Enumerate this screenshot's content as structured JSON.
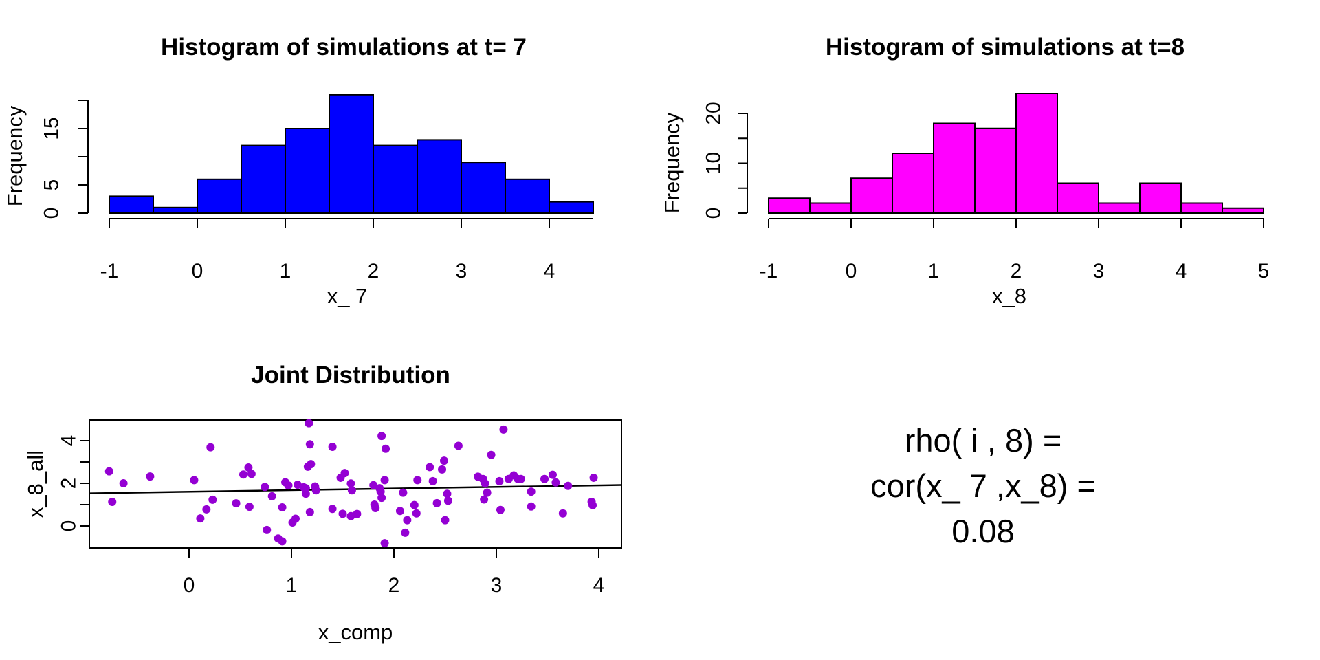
{
  "chart_data": [
    {
      "type": "histogram",
      "panel": "top-left",
      "title": "Histogram of simulations at t= 7",
      "xlabel": "x_ 7",
      "ylabel": "Frequency",
      "bar_color": "#0000FF",
      "bin_start": -1,
      "bin_width": 0.5,
      "counts": [
        3,
        1,
        6,
        12,
        15,
        21,
        12,
        13,
        9,
        6,
        2
      ],
      "x_tick_values": [
        -1,
        0,
        1,
        2,
        3,
        4
      ],
      "x_tick_labels": [
        "-1",
        "0",
        "1",
        "2",
        "3",
        "4"
      ],
      "y_tick_values": [
        0,
        5,
        10,
        15,
        20
      ],
      "y_tick_labels": [
        "0",
        "5",
        "",
        "15",
        ""
      ],
      "xlim": [
        -1,
        4.5
      ],
      "ylim": [
        0,
        21
      ],
      "grid": false
    },
    {
      "type": "histogram",
      "panel": "top-right",
      "title": "Histogram of simulations at t=8",
      "xlabel": "x_8",
      "ylabel": "Frequency",
      "bar_color": "#FF00FF",
      "bin_start": -1,
      "bin_width": 0.5,
      "counts": [
        3,
        2,
        7,
        12,
        18,
        17,
        24,
        6,
        2,
        6,
        2,
        1
      ],
      "x_tick_values": [
        -1,
        0,
        1,
        2,
        3,
        4,
        5
      ],
      "x_tick_labels": [
        "-1",
        "0",
        "1",
        "2",
        "3",
        "4",
        "5"
      ],
      "y_tick_values": [
        0,
        5,
        10,
        15,
        20
      ],
      "y_tick_labels": [
        "0",
        "",
        "10",
        "",
        "20"
      ],
      "xlim": [
        -1,
        5
      ],
      "ylim": [
        0,
        24
      ],
      "grid": false
    },
    {
      "type": "scatter",
      "panel": "bottom-left",
      "title": "Joint Distribution",
      "xlabel": "x_comp",
      "ylabel": "x_8_all",
      "point_color": "#9400D3",
      "line_color": "#000000",
      "x_tick_values": [
        0,
        1,
        2,
        3,
        4
      ],
      "x_tick_labels": [
        "0",
        "1",
        "2",
        "3",
        "4"
      ],
      "y_tick_values": [
        0,
        1,
        2,
        3,
        4
      ],
      "y_tick_labels": [
        "0",
        "",
        "2",
        "",
        "4"
      ],
      "xlim": [
        -0.97,
        4.22
      ],
      "ylim": [
        -1.03,
        4.97
      ],
      "fit_line": {
        "x1": -0.97,
        "y1": 1.53,
        "x2": 4.22,
        "y2": 1.92
      },
      "points": [
        [
          -0.78,
          2.56
        ],
        [
          -0.64,
          2.0
        ],
        [
          -0.75,
          1.13
        ],
        [
          -0.38,
          2.32
        ],
        [
          0.05,
          2.15
        ],
        [
          0.21,
          3.69
        ],
        [
          0.11,
          0.35
        ],
        [
          0.17,
          0.78
        ],
        [
          0.23,
          1.23
        ],
        [
          0.46,
          1.06
        ],
        [
          0.53,
          2.41
        ],
        [
          0.58,
          2.74
        ],
        [
          0.61,
          2.44
        ],
        [
          0.59,
          0.9
        ],
        [
          0.74,
          1.83
        ],
        [
          0.81,
          1.39
        ],
        [
          0.76,
          -0.19
        ],
        [
          0.87,
          -0.59
        ],
        [
          0.91,
          -0.72
        ],
        [
          0.91,
          0.87
        ],
        [
          0.94,
          2.05
        ],
        [
          0.97,
          1.9
        ],
        [
          1.01,
          0.16
        ],
        [
          1.04,
          0.34
        ],
        [
          1.06,
          1.93
        ],
        [
          1.12,
          1.81
        ],
        [
          1.14,
          1.77
        ],
        [
          1.17,
          4.82
        ],
        [
          1.18,
          3.83
        ],
        [
          1.16,
          2.78
        ],
        [
          1.19,
          2.9
        ],
        [
          1.14,
          1.51
        ],
        [
          1.18,
          0.65
        ],
        [
          1.23,
          1.85
        ],
        [
          1.24,
          1.67
        ],
        [
          1.4,
          3.71
        ],
        [
          1.4,
          0.8
        ],
        [
          1.48,
          2.26
        ],
        [
          1.52,
          2.48
        ],
        [
          1.58,
          1.99
        ],
        [
          1.59,
          1.67
        ],
        [
          1.58,
          0.46
        ],
        [
          1.5,
          0.57
        ],
        [
          1.88,
          4.22
        ],
        [
          1.92,
          3.62
        ],
        [
          1.8,
          1.91
        ],
        [
          1.86,
          1.77
        ],
        [
          1.87,
          1.61
        ],
        [
          1.88,
          1.32
        ],
        [
          1.81,
          1.0
        ],
        [
          1.82,
          0.84
        ],
        [
          1.64,
          0.56
        ],
        [
          1.91,
          2.15
        ],
        [
          2.06,
          0.7
        ],
        [
          2.09,
          1.56
        ],
        [
          2.13,
          0.27
        ],
        [
          2.11,
          -0.32
        ],
        [
          1.91,
          -0.81
        ],
        [
          2.2,
          0.98
        ],
        [
          2.22,
          0.59
        ],
        [
          2.23,
          2.15
        ],
        [
          2.35,
          2.76
        ],
        [
          2.38,
          2.1
        ],
        [
          2.42,
          1.07
        ],
        [
          2.47,
          2.65
        ],
        [
          2.49,
          3.06
        ],
        [
          2.52,
          1.51
        ],
        [
          2.53,
          1.18
        ],
        [
          2.5,
          0.27
        ],
        [
          2.63,
          3.76
        ],
        [
          2.82,
          2.31
        ],
        [
          2.87,
          2.2
        ],
        [
          2.89,
          1.99
        ],
        [
          2.91,
          1.56
        ],
        [
          2.88,
          1.24
        ],
        [
          2.95,
          3.33
        ],
        [
          3.07,
          4.52
        ],
        [
          3.03,
          2.1
        ],
        [
          3.04,
          0.75
        ],
        [
          3.12,
          2.2
        ],
        [
          3.17,
          2.37
        ],
        [
          3.21,
          2.2
        ],
        [
          3.24,
          2.2
        ],
        [
          3.34,
          1.61
        ],
        [
          3.34,
          0.91
        ],
        [
          3.47,
          2.2
        ],
        [
          3.55,
          2.4
        ],
        [
          3.58,
          2.04
        ],
        [
          3.65,
          0.59
        ],
        [
          3.7,
          1.88
        ],
        [
          3.93,
          1.13
        ],
        [
          3.94,
          0.97
        ],
        [
          3.95,
          2.26
        ]
      ],
      "grid": false
    }
  ],
  "annotation": {
    "lines": [
      "rho( i , 8) =",
      "cor(x_ 7 ,x_8) =",
      "0.08"
    ]
  },
  "colors": {
    "hist_t7": "#0000FF",
    "hist_t8": "#FF00FF",
    "scatter_points": "#9400D3",
    "axis": "#000000",
    "background": "#FFFFFF"
  }
}
